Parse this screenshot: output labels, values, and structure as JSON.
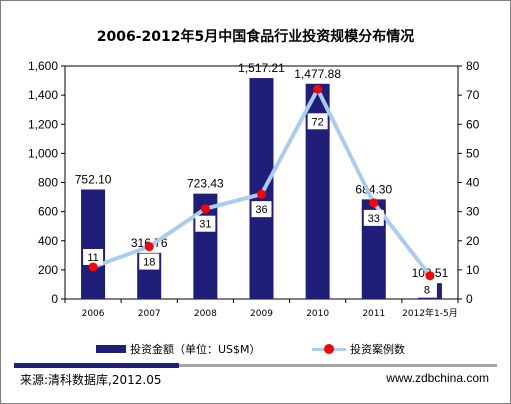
{
  "chart_data": {
    "type": "bar",
    "title": "2006-2012年5月中国食品行业投资规模分布情况",
    "categories": [
      "2006",
      "2007",
      "2008",
      "2009",
      "2010",
      "2011",
      "2012年1-5月"
    ],
    "series": [
      {
        "name": "投资金额（单位：US$M）",
        "type": "bar",
        "axis": "left",
        "values": [
          752.1,
          316.76,
          723.43,
          1517.21,
          1477.88,
          684.3,
          108.51
        ],
        "labels": [
          "752.10",
          "316.76",
          "723.43",
          "1,517.21",
          "1,477.88",
          "684.30",
          "108.51"
        ]
      },
      {
        "name": "投资案例数",
        "type": "line",
        "axis": "right",
        "values": [
          11,
          18,
          31,
          36,
          72,
          33,
          8
        ],
        "labels": [
          "11",
          "18",
          "31",
          "36",
          "72",
          "33",
          "8"
        ]
      }
    ],
    "y_left": {
      "min": 0,
      "max": 1600,
      "ticks": [
        "0",
        "200",
        "400",
        "600",
        "800",
        "1,000",
        "1,200",
        "1,400",
        "1,600"
      ]
    },
    "y_right": {
      "min": 0,
      "max": 80,
      "ticks": [
        "0",
        "10",
        "20",
        "30",
        "40",
        "50",
        "60",
        "70",
        "80"
      ]
    },
    "grid": false,
    "legend": "bottom"
  },
  "colors": {
    "bar": "#1f1f7a",
    "line": "#a9cdf0",
    "marker": "#ff0000",
    "footer_dark": "#1f1f7a",
    "footer_light": "#a6a6a6"
  },
  "footer": {
    "source": "来源:清科数据库,2012.05",
    "website": "www.zdbchina.com"
  }
}
